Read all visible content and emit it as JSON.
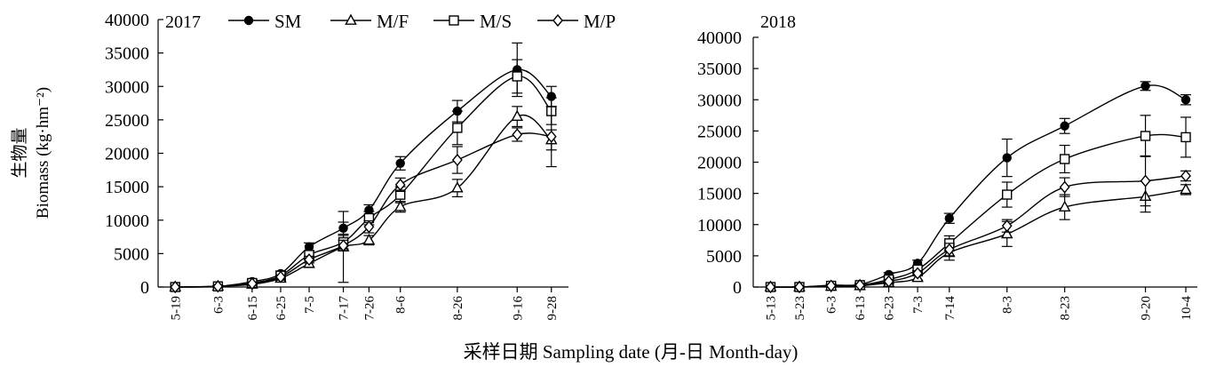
{
  "y_axis_label_cn": "生物量",
  "y_axis_label_en": "Biomass (kg·hm⁻²)",
  "x_axis_label": "采样日期 Sampling date (月-日 Month-day)",
  "colors": {
    "ink": "#000000",
    "background": "#ffffff"
  },
  "legend": [
    {
      "name": "SM",
      "marker": "filled-circle"
    },
    {
      "name": "M/F",
      "marker": "triangle"
    },
    {
      "name": "M/S",
      "marker": "square"
    },
    {
      "name": "M/P",
      "marker": "diamond"
    }
  ],
  "chart_data": [
    {
      "type": "line",
      "title": "2017",
      "ylim": [
        0,
        40000
      ],
      "yticks": [
        0,
        5000,
        10000,
        15000,
        20000,
        25000,
        30000,
        35000,
        40000
      ],
      "categories": [
        "5-19",
        "6-3",
        "6-15",
        "6-25",
        "7-5",
        "7-17",
        "7-26",
        "8-6",
        "8-26",
        "9-16",
        "9-28"
      ],
      "x": [
        0,
        15,
        27,
        37,
        47,
        59,
        68,
        79,
        99,
        120,
        132
      ],
      "xlim": [
        -6,
        138
      ],
      "series": [
        {
          "name": "SM",
          "values": [
            0,
            100,
            800,
            2000,
            6000,
            8800,
            11500,
            18500,
            26300,
            32500,
            28500
          ],
          "errors": [
            0,
            100,
            300,
            400,
            600,
            900,
            800,
            1000,
            1600,
            4000,
            1500
          ]
        },
        {
          "name": "M/F",
          "values": [
            0,
            100,
            400,
            1300,
            3500,
            6000,
            7000,
            12000,
            14800,
            25500,
            22000
          ],
          "errors": [
            0,
            100,
            200,
            300,
            500,
            5300,
            700,
            800,
            1300,
            1500,
            1500
          ]
        },
        {
          "name": "M/S",
          "values": [
            0,
            100,
            600,
            1700,
            4800,
            6700,
            10300,
            13800,
            23800,
            31500,
            26300
          ],
          "errors": [
            0,
            100,
            300,
            400,
            600,
            1000,
            1000,
            1200,
            2500,
            2500,
            2000
          ]
        },
        {
          "name": "M/P",
          "values": [
            0,
            100,
            500,
            1500,
            4100,
            6200,
            9000,
            15300,
            19000,
            22800,
            22500
          ],
          "errors": [
            0,
            100,
            200,
            300,
            500,
            800,
            900,
            1000,
            2000,
            1000,
            4500
          ]
        }
      ]
    },
    {
      "type": "line",
      "title": "2018",
      "ylim": [
        0,
        40000
      ],
      "yticks": [
        0,
        5000,
        10000,
        15000,
        20000,
        25000,
        30000,
        35000,
        40000
      ],
      "categories": [
        "5-13",
        "5-23",
        "6-3",
        "6-13",
        "6-23",
        "7-3",
        "7-14",
        "8-3",
        "8-23",
        "9-20",
        "10-4"
      ],
      "x": [
        0,
        10,
        21,
        31,
        41,
        51,
        62,
        82,
        102,
        130,
        144
      ],
      "xlim": [
        -6,
        148
      ],
      "series": [
        {
          "name": "SM",
          "values": [
            0,
            0,
            300,
            400,
            2000,
            3800,
            11000,
            20700,
            25800,
            32200,
            30000
          ],
          "errors": [
            0,
            0,
            200,
            200,
            300,
            500,
            800,
            3000,
            1200,
            700,
            800
          ]
        },
        {
          "name": "M/F",
          "values": [
            0,
            0,
            100,
            200,
            700,
            1500,
            5500,
            8500,
            12800,
            14500,
            15600
          ],
          "errors": [
            0,
            0,
            100,
            100,
            200,
            400,
            1200,
            2000,
            2000,
            2500,
            800
          ]
        },
        {
          "name": "M/S",
          "values": [
            0,
            0,
            200,
            300,
            1200,
            2800,
            7000,
            14800,
            20500,
            24200,
            24000
          ],
          "errors": [
            0,
            0,
            100,
            200,
            300,
            500,
            1200,
            2000,
            2200,
            3300,
            3200
          ]
        },
        {
          "name": "M/P",
          "values": [
            0,
            0,
            200,
            300,
            900,
            2200,
            6000,
            9800,
            16000,
            17000,
            17800
          ],
          "errors": [
            0,
            0,
            100,
            200,
            300,
            400,
            1000,
            1000,
            1500,
            4000,
            800
          ]
        }
      ]
    }
  ]
}
